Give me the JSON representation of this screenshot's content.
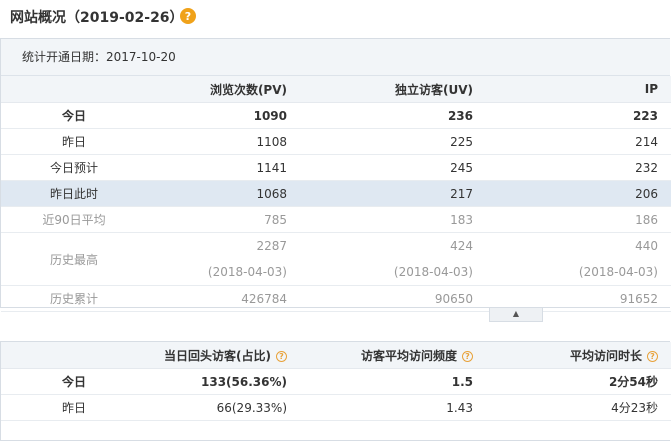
{
  "header": {
    "title": "网站概况（2019-02-26）",
    "help_icon": "?"
  },
  "stats_panel": {
    "stats_date": "统计开通日期：2017-10-20",
    "columns": [
      "",
      "浏览次数(PV)",
      "独立访客(UV)",
      "IP"
    ],
    "rows": [
      {
        "label": "今日",
        "pv": "1090",
        "uv": "236",
        "ip": "223"
      },
      {
        "label": "昨日",
        "pv": "1108",
        "uv": "225",
        "ip": "214"
      },
      {
        "label": "今日预计",
        "pv": "1141",
        "uv": "245",
        "ip": "232"
      },
      {
        "label": "昨日此时",
        "pv": "1068",
        "uv": "217",
        "ip": "206"
      },
      {
        "label": "近90日平均",
        "pv": "785",
        "uv": "183",
        "ip": "186"
      },
      {
        "label": "历史最高",
        "pv": "2287",
        "pv_date": "(2018-04-03)",
        "uv": "424",
        "uv_date": "(2018-04-03)",
        "ip": "440",
        "ip_date": "(2018-04-03)"
      },
      {
        "label": "历史累计",
        "pv": "426784",
        "uv": "90650",
        "ip": "91652"
      }
    ]
  },
  "collapse_button": {
    "icon": "chevron-up"
  },
  "return_panel": {
    "columns": [
      "",
      "当日回头访客(占比)",
      "访客平均访问频度",
      "平均访问时长"
    ],
    "info_icon": "?",
    "rows": [
      {
        "label": "今日",
        "returning": "133(56.36%)",
        "frequency": "1.5",
        "duration": "2分54秒"
      },
      {
        "label": "昨日",
        "returning": "66(29.33%)",
        "frequency": "1.43",
        "duration": "4分23秒"
      }
    ]
  }
}
